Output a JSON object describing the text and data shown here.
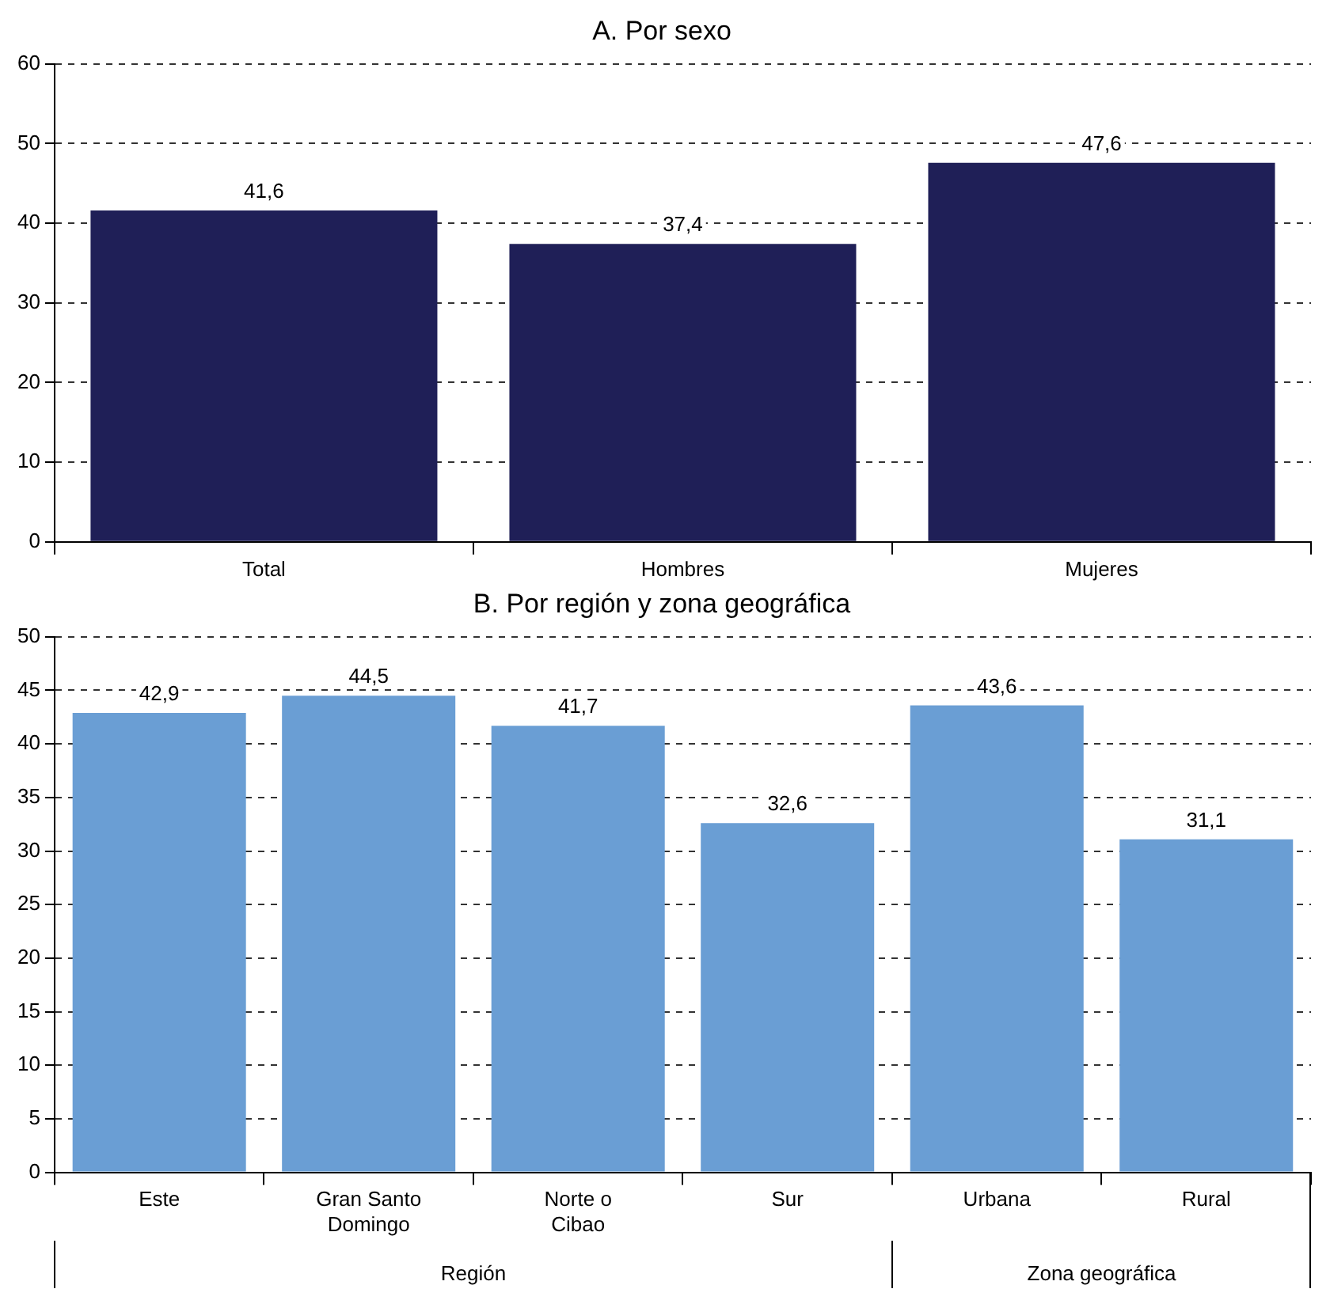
{
  "chart_data": [
    {
      "type": "bar",
      "title": "A. Por sexo",
      "categories": [
        "Total",
        "Hombres",
        "Mujeres"
      ],
      "values": [
        41.6,
        37.4,
        47.6
      ],
      "color": "#1f1f57",
      "ylim": [
        0,
        60
      ],
      "yticks": [
        0,
        10,
        20,
        30,
        40,
        50,
        60
      ],
      "grid": "y",
      "value_labels": [
        "41,6",
        "37,4",
        "47,6"
      ]
    },
    {
      "type": "bar",
      "title": "B. Por región y zona geográfica",
      "categories": [
        "Este",
        "Gran Santo Domingo",
        "Norte o Cibao",
        "Sur",
        "Urbana",
        "Rural"
      ],
      "values": [
        42.9,
        44.5,
        41.7,
        32.6,
        43.6,
        31.1
      ],
      "color": "#6a9ed4",
      "ylim": [
        0,
        50
      ],
      "yticks": [
        0,
        5,
        10,
        15,
        20,
        25,
        30,
        35,
        40,
        45,
        50
      ],
      "grid": "y",
      "value_labels": [
        "42,9",
        "44,5",
        "41,7",
        "32,6",
        "43,6",
        "31,1"
      ],
      "annotations": [
        "Región",
        "Zona geográfica"
      ]
    }
  ]
}
